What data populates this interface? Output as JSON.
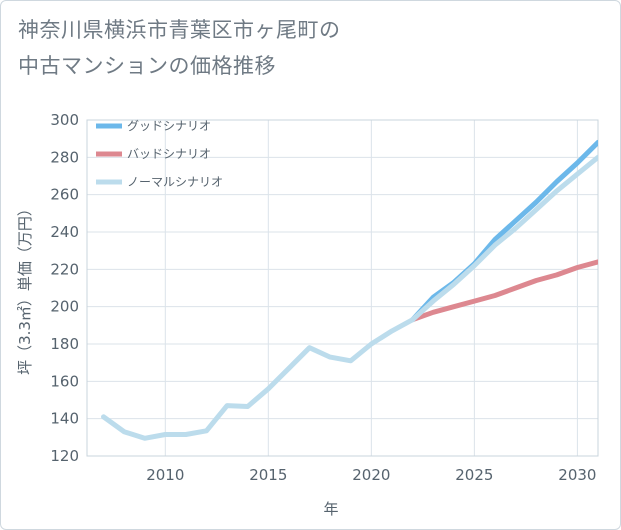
{
  "chart_data": {
    "type": "line",
    "title": "神奈川県横浜市青葉区市ヶ尾町の中古マンションの価格推移",
    "title_lines": [
      "神奈川県横浜市青葉区市ヶ尾町の",
      "中古マンションの価格推移"
    ],
    "xlabel": "年",
    "ylabel": "坪（3.3㎡）単価（万円）",
    "xlim": [
      2006.2,
      2031
    ],
    "ylim": [
      120,
      300
    ],
    "xticks": [
      2010,
      2015,
      2020,
      2025,
      2030
    ],
    "yticks": [
      120,
      140,
      160,
      180,
      200,
      220,
      240,
      260,
      280,
      300
    ],
    "grid": true,
    "legend_position": "top-left",
    "series": [
      {
        "name": "グッドシナリオ",
        "color": "#6cb8ea",
        "x": [
          2022,
          2023,
          2024,
          2025,
          2026,
          2027,
          2028,
          2029,
          2030,
          2031
        ],
        "y": [
          193,
          205,
          213,
          223,
          236,
          246,
          256,
          267,
          277,
          288
        ]
      },
      {
        "name": "バッドシナリオ",
        "color": "#dd8890",
        "x": [
          2022,
          2023,
          2024,
          2025,
          2026,
          2027,
          2028,
          2029,
          2030,
          2031
        ],
        "y": [
          193,
          197,
          200,
          203,
          206,
          210,
          214,
          217,
          221,
          224
        ]
      },
      {
        "name": "ノーマルシナリオ",
        "color": "#bcdcec",
        "x": [
          2007,
          2008,
          2009,
          2010,
          2011,
          2012,
          2013,
          2014,
          2015,
          2016,
          2017,
          2018,
          2019,
          2020,
          2021,
          2022,
          2023,
          2024,
          2025,
          2026,
          2027,
          2028,
          2029,
          2030,
          2031
        ],
        "y": [
          141,
          133,
          129.5,
          131.5,
          131.5,
          133.5,
          147,
          146.5,
          156,
          167,
          178,
          173,
          171,
          180,
          187,
          193,
          203,
          212,
          222,
          233,
          242,
          252,
          262,
          271,
          280
        ]
      }
    ]
  }
}
